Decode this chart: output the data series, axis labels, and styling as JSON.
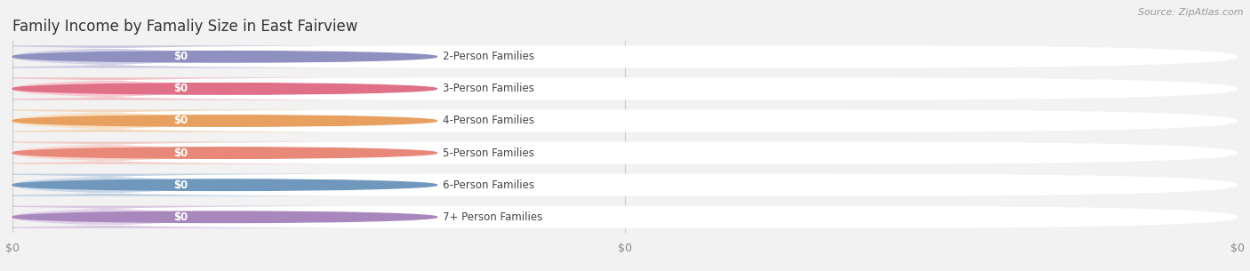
{
  "title": "Family Income by Famaliy Size in East Fairview",
  "source": "Source: ZipAtlas.com",
  "categories": [
    "2-Person Families",
    "3-Person Families",
    "4-Person Families",
    "5-Person Families",
    "6-Person Families",
    "7+ Person Families"
  ],
  "values": [
    0,
    0,
    0,
    0,
    0,
    0
  ],
  "bar_colors": [
    "#9b9bcc",
    "#ee8899",
    "#f0b878",
    "#f0a098",
    "#88aacc",
    "#bb99cc"
  ],
  "bar_bg_colors": [
    "#efefef",
    "#efefef",
    "#efefef",
    "#efefef",
    "#efefef",
    "#efefef"
  ],
  "dot_colors": [
    "#9090c0",
    "#e07088",
    "#e8a060",
    "#e88878",
    "#7098bc",
    "#a888bc"
  ],
  "background_color": "#f2f2f2",
  "title_fontsize": 12,
  "label_fontsize": 8.5,
  "value_fontsize": 8.5,
  "xtick_positions": [
    0.0,
    0.5,
    1.0
  ],
  "xtick_labels": [
    "$0",
    "$0",
    "$0"
  ]
}
